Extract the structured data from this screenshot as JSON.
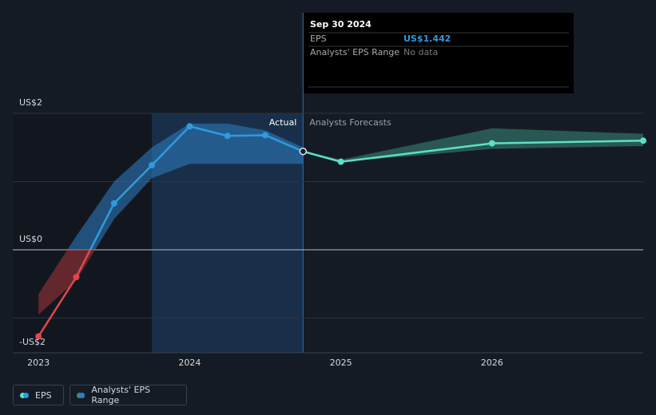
{
  "chart_data": {
    "type": "line",
    "xlim": [
      2022.83,
      2027
    ],
    "xticks": [
      2023,
      2024,
      2025,
      2026
    ],
    "ylim": [
      -1.51,
      2
    ],
    "yticks": [
      {
        "value": 2,
        "label": "US$2"
      },
      {
        "value": 0,
        "label": "US$0"
      },
      {
        "value": -2,
        "label": "-US$2"
      }
    ],
    "ygrid": [
      2,
      1,
      0,
      -1
    ],
    "highlight_range": [
      2023.75,
      2024.75
    ],
    "annotations": [
      "Actual",
      "Analysts Forecasts"
    ],
    "series": [
      {
        "name": "EPS",
        "color": "#2e9be0",
        "negative_color": "#e0474c",
        "forecast_color": "#5de0c8",
        "x": [
          2023,
          2023.25,
          2023.5,
          2023.75,
          2024,
          2024.25,
          2024.5,
          2024.75
        ],
        "values": [
          -1.27,
          -0.4,
          0.68,
          1.24,
          1.81,
          1.67,
          1.68,
          1.442
        ],
        "forecast_x": [
          2024.75,
          2025,
          2026,
          2027
        ],
        "forecast_values": [
          1.442,
          1.29,
          1.56,
          1.6
        ]
      }
    ],
    "range": {
      "name": "Analysts' EPS Range",
      "color": "#2e7fc4",
      "negative_color": "#a8343a",
      "forecast_color": "#3a8a78",
      "x": [
        2023,
        2023.25,
        2023.5,
        2023.75,
        2024,
        2024.25,
        2024.5,
        2024.75
      ],
      "high": [
        -0.65,
        0.2,
        1.0,
        1.5,
        1.85,
        1.85,
        1.75,
        1.5
      ],
      "low": [
        -0.95,
        -0.45,
        0.45,
        1.05,
        1.26,
        1.26,
        1.26,
        1.26
      ],
      "forecast_x": [
        2024.75,
        2025,
        2025.5,
        2026,
        2027
      ],
      "forecast_high": [
        1.45,
        1.32,
        1.55,
        1.78,
        1.7
      ],
      "forecast_low": [
        1.45,
        1.29,
        1.38,
        1.48,
        1.52
      ]
    },
    "tooltip": {
      "date": "Sep 30 2024",
      "rows": [
        {
          "label": "EPS",
          "value": "US$1.442"
        },
        {
          "label": "Analysts' EPS Range",
          "value": "No data"
        }
      ]
    }
  }
}
